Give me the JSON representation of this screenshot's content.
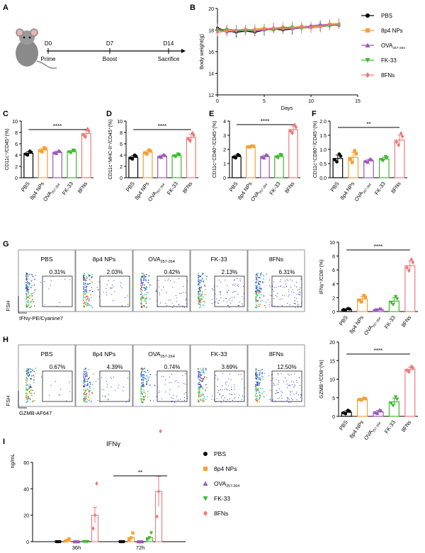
{
  "colors": {
    "PBS": "#000000",
    "8p4 NPs": "#f5a033",
    "OVA": "#9b59b6",
    "FK-33": "#3cba2a",
    "8FNs": "#f07a7a",
    "axis": "#000000"
  },
  "group_labels": [
    "PBS",
    "8p4 NPs",
    "OVA257-264",
    "FK-33",
    "8FNs"
  ],
  "panel_a": {
    "letter": "A",
    "timeline": [
      {
        "day": "D0",
        "event": "Prime"
      },
      {
        "day": "D7",
        "event": "Boost"
      },
      {
        "day": "D14",
        "event": "Sacrifice"
      }
    ]
  },
  "panel_b": {
    "letter": "B",
    "ylabel": "Body weight(g)",
    "xlabel": "Days",
    "y_ticks": [
      "12",
      "14",
      "16",
      "18",
      "20"
    ],
    "x_ticks": [
      "0",
      "5",
      "10",
      "15"
    ],
    "legend": [
      "PBS",
      "8p4 NPs",
      "OVA257-264",
      "FK-33",
      "8FNs"
    ]
  },
  "bar_panels": [
    {
      "letter": "C",
      "ylabel": "CD11c⁺/CD45⁺(%)",
      "yticks": [
        "0",
        "2",
        "4",
        "6",
        "8",
        "10"
      ],
      "sig": "****",
      "values": [
        4.3,
        4.9,
        4.5,
        4.6,
        7.8
      ]
    },
    {
      "letter": "D",
      "ylabel": "CD11c⁺MHC-II⁺/CD45⁺(%)",
      "yticks": [
        "0",
        "2",
        "4",
        "6",
        "8",
        "10"
      ],
      "sig": "****",
      "values": [
        3.6,
        4.5,
        3.8,
        3.9,
        7.1
      ]
    },
    {
      "letter": "E",
      "ylabel": "CD11c⁺CD40⁺/CD45⁺(%)",
      "yticks": [
        "0",
        "1",
        "2",
        "3",
        "4"
      ],
      "sig": "****",
      "values": [
        1.5,
        2.2,
        1.5,
        1.5,
        3.4
      ]
    },
    {
      "letter": "F",
      "ylabel": "CD11c⁺CD80⁺/CD45⁺(%)",
      "yticks": [
        "0.0",
        "0.5",
        "1.0",
        "1.5",
        "2.0"
      ],
      "sig": "**",
      "values": [
        0.68,
        0.72,
        0.6,
        0.66,
        1.33
      ]
    },
    {
      "letter": "",
      "ylabel": "IFNγ⁺/CD8⁺(%)",
      "yticks": [
        "0",
        "2",
        "4",
        "6",
        "8",
        "10"
      ],
      "sig": "****",
      "values": [
        0.3,
        1.8,
        0.3,
        1.5,
        6.6
      ]
    },
    {
      "letter": "",
      "ylabel": "GZMB⁺/CD8⁺(%)",
      "yticks": [
        "0",
        "5",
        "10",
        "15",
        "20"
      ],
      "sig": "****",
      "values": [
        1.1,
        4.6,
        1.2,
        3.9,
        12.6
      ]
    }
  ],
  "panel_g": {
    "letter": "G",
    "xlabel": "IFNγ-PE/Cyanine7",
    "ylabel": "FSH",
    "pcts": [
      "0.31%",
      "2.03%",
      "0.42%",
      "2.13%",
      "6.31%"
    ]
  },
  "panel_h": {
    "letter": "H",
    "xlabel": "GZMB-AF647",
    "ylabel": "FSH",
    "pcts": [
      "0.67%",
      "4.39%",
      "0.74%",
      "3.69%",
      "12.50%"
    ]
  },
  "panel_i": {
    "letter": "I",
    "title": "IFNγ",
    "ylabel": "ng/mL",
    "yticks": [
      "0",
      "20",
      "40",
      "60"
    ],
    "xticks": [
      "36h",
      "72h"
    ],
    "sig": "**",
    "legend": [
      "PBS",
      "8p4 NPs",
      "OVA257-264",
      "FK-33",
      "8FNs"
    ]
  },
  "chart_data": [
    {
      "type": "line",
      "title": "Body weight",
      "xlabel": "Days",
      "ylabel": "Body weight(g)",
      "ylim": [
        12,
        20
      ],
      "xlim": [
        0,
        15
      ],
      "x": [
        0,
        1,
        2,
        3,
        4,
        5,
        6,
        7,
        8,
        9,
        10,
        11,
        12,
        13
      ],
      "series": [
        {
          "name": "PBS",
          "values": [
            18.2,
            17.9,
            17.8,
            17.9,
            17.8,
            18.0,
            18.1,
            18.0,
            18.1,
            18.2,
            18.3,
            18.4,
            18.4,
            18.5
          ]
        },
        {
          "name": "8p4 NPs",
          "values": [
            17.9,
            18.0,
            17.9,
            18.0,
            18.1,
            18.2,
            18.1,
            18.3,
            18.2,
            18.4,
            18.3,
            18.4,
            18.6,
            18.6
          ]
        },
        {
          "name": "OVA257-264",
          "values": [
            18.1,
            17.8,
            17.9,
            18.0,
            17.9,
            18.0,
            18.2,
            18.2,
            18.1,
            18.2,
            18.4,
            18.5,
            18.5,
            18.4
          ]
        },
        {
          "name": "FK-33",
          "values": [
            18.0,
            18.1,
            18.0,
            17.9,
            18.0,
            18.1,
            18.0,
            18.2,
            18.3,
            18.2,
            18.2,
            18.3,
            18.4,
            18.5
          ]
        },
        {
          "name": "8FNs",
          "values": [
            17.8,
            17.9,
            18.0,
            18.1,
            18.0,
            18.1,
            18.2,
            18.1,
            18.2,
            18.3,
            18.2,
            18.3,
            18.5,
            18.6
          ]
        }
      ]
    },
    {
      "type": "bar",
      "title": "C",
      "ylabel": "CD11c⁺/CD45⁺(%)",
      "ylim": [
        0,
        10
      ],
      "categories": [
        "PBS",
        "8p4 NPs",
        "OVA257-264",
        "FK-33",
        "8FNs"
      ],
      "values": [
        4.3,
        4.9,
        4.5,
        4.6,
        7.8
      ],
      "errors": [
        0.3,
        0.3,
        0.2,
        0.2,
        0.6
      ]
    },
    {
      "type": "bar",
      "title": "D",
      "ylabel": "CD11c⁺MHC-II⁺/CD45⁺(%)",
      "ylim": [
        0,
        10
      ],
      "categories": [
        "PBS",
        "8p4 NPs",
        "OVA257-264",
        "FK-33",
        "8FNs"
      ],
      "values": [
        3.6,
        4.5,
        3.8,
        3.9,
        7.1
      ],
      "errors": [
        0.3,
        0.3,
        0.2,
        0.2,
        0.6
      ]
    },
    {
      "type": "bar",
      "title": "E",
      "ylabel": "CD11c⁺CD40⁺/CD45⁺(%)",
      "ylim": [
        0,
        4
      ],
      "categories": [
        "PBS",
        "8p4 NPs",
        "OVA257-264",
        "FK-33",
        "8FNs"
      ],
      "values": [
        1.5,
        2.2,
        1.5,
        1.5,
        3.4
      ],
      "errors": [
        0.1,
        0.03,
        0.1,
        0.1,
        0.25
      ]
    },
    {
      "type": "bar",
      "title": "F",
      "ylabel": "CD11c⁺CD80⁺/CD45⁺(%)",
      "ylim": [
        0,
        2
      ],
      "categories": [
        "PBS",
        "8p4 NPs",
        "OVA257-264",
        "FK-33",
        "8FNs"
      ],
      "values": [
        0.68,
        0.72,
        0.6,
        0.66,
        1.33
      ],
      "errors": [
        0.12,
        0.18,
        0.05,
        0.06,
        0.18
      ]
    },
    {
      "type": "bar",
      "title": "G",
      "ylabel": "IFNγ⁺/CD8⁺(%)",
      "ylim": [
        0,
        10
      ],
      "categories": [
        "PBS",
        "8p4 NPs",
        "OVA257-264",
        "FK-33",
        "8FNs"
      ],
      "values": [
        0.3,
        1.8,
        0.3,
        1.5,
        6.6
      ],
      "errors": [
        0.1,
        0.4,
        0.1,
        0.5,
        0.7
      ]
    },
    {
      "type": "bar",
      "title": "H",
      "ylabel": "GZMB⁺/CD8⁺(%)",
      "ylim": [
        0,
        20
      ],
      "categories": [
        "PBS",
        "8p4 NPs",
        "OVA257-264",
        "FK-33",
        "8FNs"
      ],
      "values": [
        1.1,
        4.6,
        1.2,
        3.9,
        12.6
      ],
      "errors": [
        0.4,
        0.2,
        0.4,
        1.0,
        0.6
      ]
    },
    {
      "type": "bar",
      "title": "IFNγ",
      "ylabel": "ng/mL",
      "ylim": [
        0,
        60
      ],
      "categories": [
        "36h",
        "72h"
      ],
      "series": [
        {
          "name": "PBS",
          "values": [
            0,
            0
          ]
        },
        {
          "name": "8p4 NPs",
          "values": [
            1,
            3
          ]
        },
        {
          "name": "OVA257-264",
          "values": [
            0,
            0
          ]
        },
        {
          "name": "FK-33",
          "values": [
            0,
            3
          ]
        },
        {
          "name": "8FNs",
          "values": [
            20,
            38
          ]
        }
      ]
    }
  ]
}
